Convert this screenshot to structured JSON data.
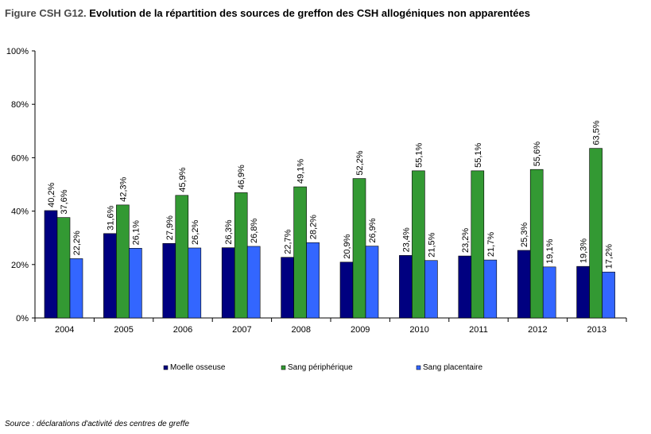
{
  "title_prefix": "Figure CSH G12.",
  "title_main": "Evolution de la répartition des sources de greffon des CSH allogéniques non apparentées",
  "source": "Source : déclarations d'activité des centres de greffe",
  "colors": {
    "moelle": "#000080",
    "sang_periph": "#339933",
    "placentaire": "#3366FF"
  },
  "chart_data": {
    "type": "bar",
    "title": "Evolution de la répartition des sources de greffon des CSH allogéniques non apparentées",
    "xlabel": "",
    "ylabel": "",
    "ylim": [
      0,
      100
    ],
    "y_ticks": [
      "0%",
      "20%",
      "40%",
      "60%",
      "80%",
      "100%"
    ],
    "y_tick_values": [
      0,
      20,
      40,
      60,
      80,
      100
    ],
    "grid": false,
    "legend": "bottom",
    "categories": [
      "2004",
      "2005",
      "2006",
      "2007",
      "2008",
      "2009",
      "2010",
      "2011",
      "2012",
      "2013"
    ],
    "series": [
      {
        "name": "Moelle osseuse",
        "color": "#000080",
        "values": [
          40.2,
          31.6,
          27.9,
          26.3,
          22.7,
          20.9,
          23.4,
          23.2,
          25.3,
          19.3
        ],
        "labels": [
          "40,2%",
          "31,6%",
          "27,9%",
          "26,3%",
          "22,7%",
          "20,9%",
          "23,4%",
          "23,2%",
          "25,3%",
          "19,3%"
        ]
      },
      {
        "name": "Sang périphérique",
        "color": "#339933",
        "values": [
          37.6,
          42.3,
          45.9,
          46.9,
          49.1,
          52.2,
          55.1,
          55.1,
          55.6,
          63.5
        ],
        "labels": [
          "37,6%",
          "42,3%",
          "45,9%",
          "46,9%",
          "49,1%",
          "52,2%",
          "55,1%",
          "55,1%",
          "55,6%",
          "63,5%"
        ]
      },
      {
        "name": "Sang placentaire",
        "color": "#3366FF",
        "values": [
          22.2,
          26.1,
          26.2,
          26.8,
          28.2,
          26.9,
          21.5,
          21.7,
          19.1,
          17.2
        ],
        "labels": [
          "22,2%",
          "26,1%",
          "26,2%",
          "26,8%",
          "28,2%",
          "26,9%",
          "21,5%",
          "21,7%",
          "19,1%",
          "17,2%"
        ]
      }
    ]
  }
}
